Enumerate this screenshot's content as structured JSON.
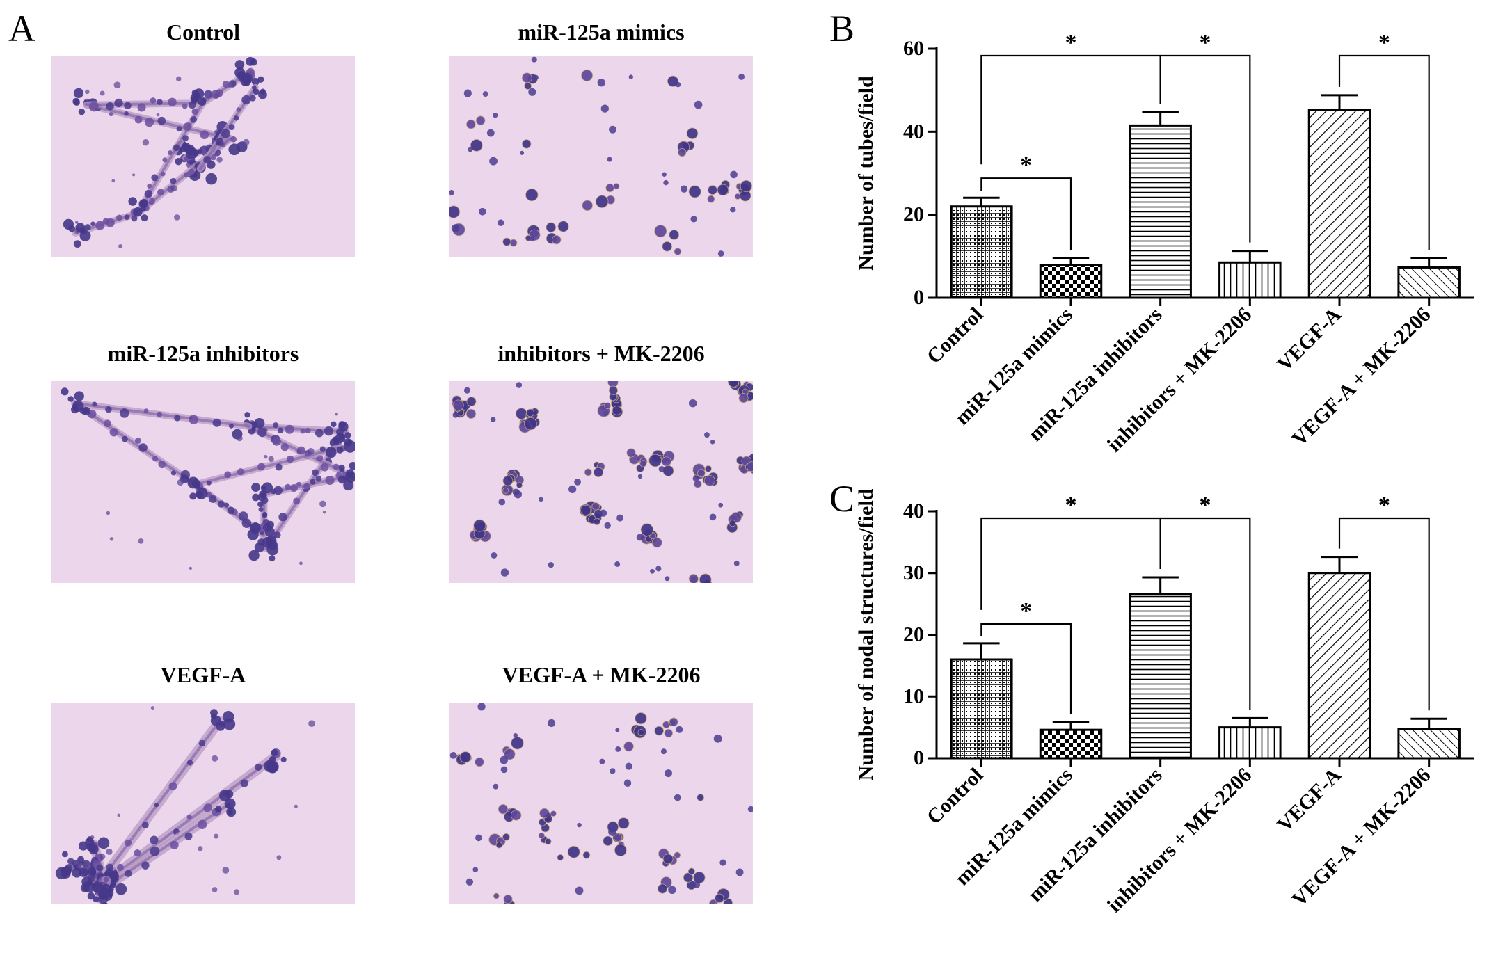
{
  "panel_a": {
    "letter": "A",
    "images": [
      {
        "title": "Control",
        "style": "network"
      },
      {
        "title": "miR-125a mimics",
        "style": "sparse"
      },
      {
        "title": "miR-125a inhibitors",
        "style": "network"
      },
      {
        "title": "inhibitors + MK-2206",
        "style": "clusters"
      },
      {
        "title": "VEGF-A",
        "style": "dense-network"
      },
      {
        "title": "VEGF-A + MK-2206",
        "style": "sparse"
      }
    ]
  },
  "chart_data": [
    {
      "panel": "B",
      "type": "bar",
      "ylabel": "Number of tubes/field",
      "ylim": [
        0,
        60
      ],
      "yticks": [
        0,
        20,
        40,
        60
      ],
      "categories": [
        "Control",
        "miR-125a mimics",
        "miR-125a inhibitors",
        "inhibitors + MK-2206",
        "VEGF-A",
        "VEGF-A + MK-2206"
      ],
      "values": [
        22,
        7.8,
        41.5,
        8.5,
        45.2,
        7.3
      ],
      "errors": [
        2.1,
        1.7,
        3.2,
        2.8,
        3.6,
        2.2
      ],
      "patterns": [
        "grid",
        "checker",
        "hlines",
        "vlines",
        "diag-right",
        "diag-left"
      ],
      "significance": [
        {
          "from": 0,
          "to": 1,
          "label": "*"
        },
        {
          "from": 0,
          "to": 2,
          "label": "*"
        },
        {
          "from": 2,
          "to": 3,
          "label": "*"
        },
        {
          "from": 4,
          "to": 5,
          "label": "*"
        }
      ]
    },
    {
      "panel": "C",
      "type": "bar",
      "ylabel": "Number of nodal structures/field",
      "ylim": [
        0,
        40
      ],
      "yticks": [
        0,
        10,
        20,
        30,
        40
      ],
      "categories": [
        "Control",
        "miR-125a mimics",
        "miR-125a inhibitors",
        "inhibitors + MK-2206",
        "VEGF-A",
        "VEGF-A + MK-2206"
      ],
      "values": [
        16,
        4.6,
        26.6,
        5.0,
        30.0,
        4.7
      ],
      "errors": [
        2.6,
        1.2,
        2.7,
        1.5,
        2.6,
        1.7
      ],
      "patterns": [
        "grid",
        "checker",
        "hlines",
        "vlines",
        "diag-right",
        "diag-left"
      ],
      "significance": [
        {
          "from": 0,
          "to": 1,
          "label": "*"
        },
        {
          "from": 0,
          "to": 2,
          "label": "*"
        },
        {
          "from": 2,
          "to": 3,
          "label": "*"
        },
        {
          "from": 4,
          "to": 5,
          "label": "*"
        }
      ]
    }
  ],
  "colors": {
    "bar_outline": "#000000",
    "image_bg": "#ead3ea",
    "cell_dark": "#4a3a8c",
    "cell_mid": "#8a6aa8"
  }
}
